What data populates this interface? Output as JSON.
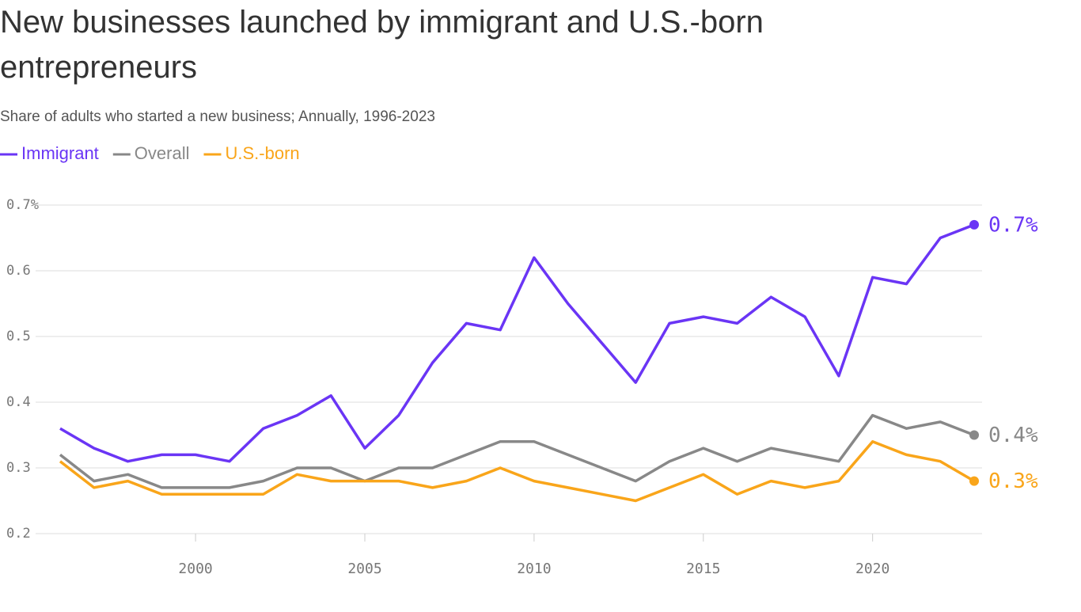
{
  "chart_data": {
    "type": "line",
    "title": "New businesses launched by immigrant and U.S.-born entrepreneurs",
    "subtitle": "Share of adults who started a new business; Annually, 1996-2023",
    "x": [
      1996,
      1997,
      1998,
      1999,
      2000,
      2001,
      2002,
      2003,
      2004,
      2005,
      2006,
      2007,
      2008,
      2009,
      2010,
      2011,
      2012,
      2013,
      2014,
      2015,
      2016,
      2017,
      2018,
      2019,
      2020,
      2021,
      2022,
      2023
    ],
    "series": [
      {
        "name": "Immigrant",
        "color": "#6a35f5",
        "values": [
          0.36,
          0.33,
          0.31,
          0.32,
          0.32,
          0.31,
          0.36,
          0.38,
          0.41,
          0.33,
          0.38,
          0.46,
          0.52,
          0.51,
          0.62,
          0.55,
          0.49,
          0.43,
          0.52,
          0.53,
          0.52,
          0.56,
          0.53,
          0.44,
          0.59,
          0.58,
          0.65,
          0.67
        ],
        "value_labels": [
          null,
          null,
          null,
          null,
          null,
          null,
          null,
          null,
          null,
          null,
          null,
          null,
          null,
          null,
          null,
          null,
          null,
          null,
          null,
          null,
          null,
          null,
          null,
          null,
          null,
          null,
          null,
          "0.7%"
        ]
      },
      {
        "name": "Overall",
        "color": "#888888",
        "values": [
          0.32,
          0.28,
          0.29,
          0.27,
          0.27,
          0.27,
          0.28,
          0.3,
          0.3,
          0.28,
          0.3,
          0.3,
          0.32,
          0.34,
          0.34,
          0.32,
          0.3,
          0.28,
          0.31,
          0.33,
          0.31,
          0.33,
          0.32,
          0.31,
          0.38,
          0.36,
          0.37,
          0.35
        ],
        "value_labels": [
          null,
          null,
          null,
          null,
          null,
          null,
          null,
          null,
          null,
          null,
          null,
          null,
          null,
          null,
          null,
          null,
          null,
          null,
          null,
          null,
          null,
          null,
          null,
          null,
          null,
          null,
          null,
          "0.4%"
        ]
      },
      {
        "name": "U.S.-born",
        "color": "#f9a51a",
        "values": [
          0.31,
          0.27,
          0.28,
          0.26,
          0.26,
          0.26,
          0.26,
          0.29,
          0.28,
          0.28,
          0.28,
          0.27,
          0.28,
          0.3,
          0.28,
          0.27,
          0.26,
          0.25,
          0.27,
          0.29,
          0.26,
          0.28,
          0.27,
          0.28,
          0.34,
          0.32,
          0.31,
          0.28
        ],
        "value_labels": [
          null,
          null,
          null,
          null,
          null,
          null,
          null,
          null,
          null,
          null,
          null,
          null,
          null,
          null,
          null,
          null,
          null,
          null,
          null,
          null,
          null,
          null,
          null,
          null,
          null,
          null,
          null,
          "0.3%"
        ]
      }
    ],
    "xlim": [
      1996,
      2023
    ],
    "xticks": [
      2000,
      2005,
      2010,
      2015,
      2020
    ],
    "ylim": [
      0.2,
      0.7
    ],
    "yticks": [
      0.2,
      0.3,
      0.4,
      0.5,
      0.6,
      {
        "value": 0.7,
        "label": "0.7%"
      }
    ],
    "grid": true
  }
}
